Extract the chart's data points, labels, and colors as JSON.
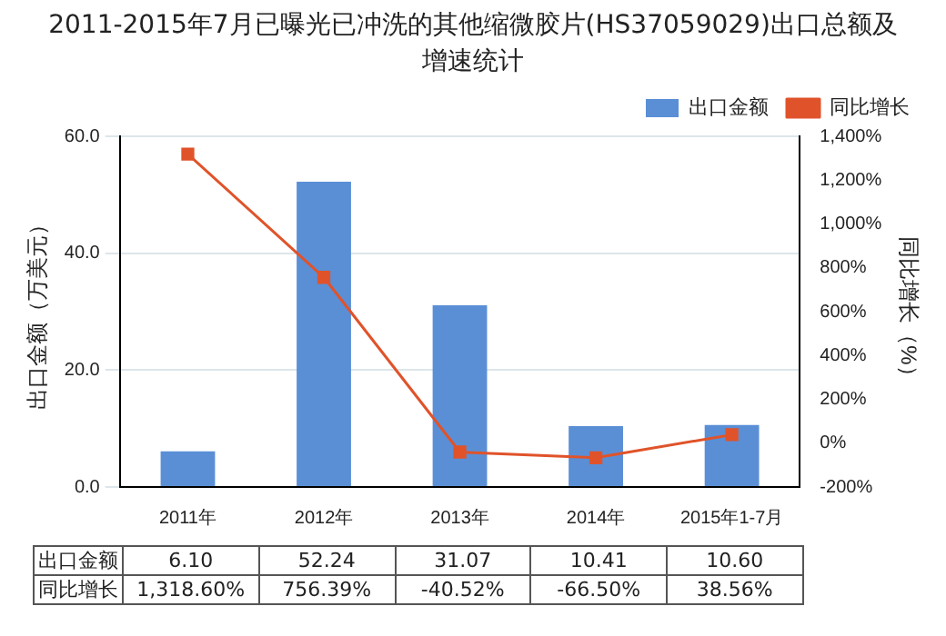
{
  "chart_data": {
    "type": "bar",
    "title": "2011-2015年7月已曝光已冲洗的其他缩微胶片(HS37059029)出口总额及增速统计",
    "ylabel": "出口金额（万美元）",
    "y2label": "同比增长（%）",
    "categories": [
      "2011年",
      "2012年",
      "2013年",
      "2014年",
      "2015年1-7月"
    ],
    "series": [
      {
        "name": "出口金额",
        "color": "#5a8fd6",
        "values": [
          6.1,
          52.24,
          31.07,
          10.41,
          10.6
        ],
        "value_labels": [
          "6.10",
          "52.24",
          "31.07",
          "10.41",
          "10.60"
        ]
      },
      {
        "name": "同比增长",
        "type": "line",
        "axis": "y2",
        "color": "#e0532a",
        "marker": "square",
        "values": [
          1318.6,
          756.39,
          -40.52,
          -66.5,
          38.56
        ],
        "value_labels": [
          "1,318.60%",
          "756.39%",
          "-40.52%",
          "-66.50%",
          "38.56%"
        ]
      }
    ],
    "ylim": [
      0,
      60
    ],
    "yticks": [
      {
        "value": 0,
        "label": "0.0"
      },
      {
        "value": 20,
        "label": "20.0"
      },
      {
        "value": 40,
        "label": "40.0"
      },
      {
        "value": 60,
        "label": "60.0"
      }
    ],
    "y2lim": [
      -200,
      1400
    ],
    "y2ticks": [
      {
        "value": -200,
        "label": "-200%"
      },
      {
        "value": 0,
        "label": "0%"
      },
      {
        "value": 200,
        "label": "200%"
      },
      {
        "value": 400,
        "label": "400%"
      },
      {
        "value": 600,
        "label": "600%"
      },
      {
        "value": 800,
        "label": "800%"
      },
      {
        "value": 1000,
        "label": "1,000%"
      },
      {
        "value": 1200,
        "label": "1,200%"
      },
      {
        "value": 1400,
        "label": "1,400%"
      }
    ],
    "grid": "y",
    "legend": "top right"
  }
}
